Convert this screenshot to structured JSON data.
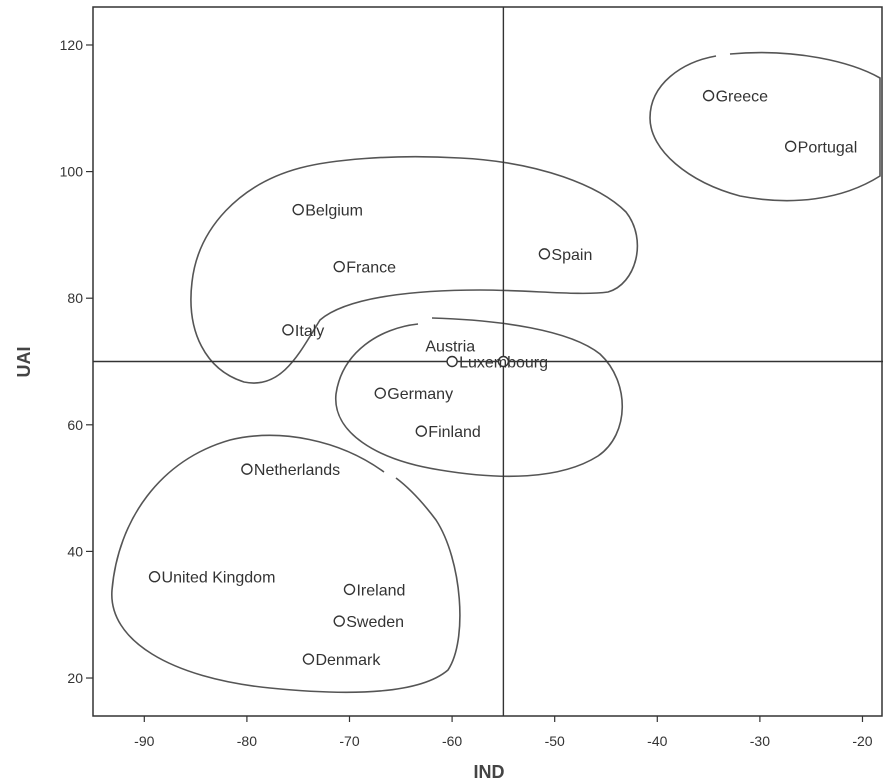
{
  "chart_data": {
    "type": "scatter",
    "xlabel": "IND",
    "ylabel": "UAI",
    "xlim": [
      -95,
      -18
    ],
    "ylim": [
      14,
      126
    ],
    "xticks": [
      -90,
      -80,
      -70,
      -60,
      -50,
      -40,
      -30,
      -20
    ],
    "yticks": [
      20,
      40,
      60,
      80,
      100,
      120
    ],
    "reference_lines": {
      "x": -55,
      "y": 70
    },
    "grid": false,
    "points": [
      {
        "label": "Greece",
        "x": -35,
        "y": 112
      },
      {
        "label": "Portugal",
        "x": -27,
        "y": 104
      },
      {
        "label": "Belgium",
        "x": -75,
        "y": 94
      },
      {
        "label": "France",
        "x": -71,
        "y": 85
      },
      {
        "label": "Spain",
        "x": -51,
        "y": 87
      },
      {
        "label": "Italy",
        "x": -76,
        "y": 75
      },
      {
        "label": "Austria",
        "x": -55,
        "y": 70
      },
      {
        "label": "Luxembourg",
        "x": -60,
        "y": 70
      },
      {
        "label": "Germany",
        "x": -67,
        "y": 65
      },
      {
        "label": "Finland",
        "x": -63,
        "y": 59
      },
      {
        "label": "Netherlands",
        "x": -80,
        "y": 53
      },
      {
        "label": "United Kingdom",
        "x": -89,
        "y": 36
      },
      {
        "label": "Ireland",
        "x": -70,
        "y": 34
      },
      {
        "label": "Sweden",
        "x": -71,
        "y": 29
      },
      {
        "label": "Denmark",
        "x": -74,
        "y": 23
      }
    ],
    "clusters": [
      {
        "members": [
          "Greece",
          "Portugal"
        ]
      },
      {
        "members": [
          "Belgium",
          "France",
          "Spain",
          "Italy"
        ]
      },
      {
        "members": [
          "Austria",
          "Luxembourg",
          "Germany",
          "Finland"
        ]
      },
      {
        "members": [
          "Netherlands",
          "United Kingdom",
          "Ireland",
          "Sweden",
          "Denmark"
        ]
      }
    ]
  }
}
